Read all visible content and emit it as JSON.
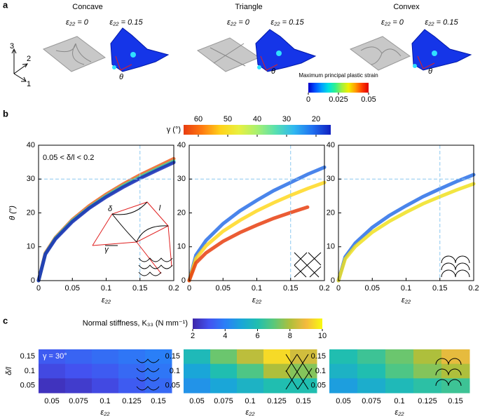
{
  "panel_labels": [
    "a",
    "b",
    "c"
  ],
  "panel_a": {
    "axes": [
      "3",
      "2",
      "1"
    ],
    "groups": [
      {
        "title": "Concave",
        "left_label": "ε₂₂ = 0",
        "right_label": "ε₂₂ = 0.15",
        "angle": "θ"
      },
      {
        "title": "Triangle",
        "left_label": "ε₂₂ = 0",
        "right_label": "ε₂₂ = 0.15",
        "angle": "θ"
      },
      {
        "title": "Convex",
        "left_label": "ε₂₂ = 0",
        "right_label": "ε₂₂ = 0.15",
        "angle": "θ"
      }
    ],
    "colorbar": {
      "label": "Maximum principal plastic strain",
      "lim": [
        0,
        0.05
      ],
      "ticks": [
        0,
        0.025,
        0.05
      ],
      "colors": [
        "#0000c8",
        "#0050ff",
        "#00a0ff",
        "#00e0e0",
        "#30f090",
        "#a0f040",
        "#f0f000",
        "#ffa000",
        "#ff4000",
        "#e00000"
      ]
    }
  },
  "panel_b_colorbar": {
    "label": "γ (°)",
    "lim": [
      65,
      15
    ],
    "ticks": [
      60,
      50,
      40,
      30,
      20
    ],
    "colors": [
      "#e83c10",
      "#ff7a10",
      "#ffd21a",
      "#e8f040",
      "#a8f070",
      "#58e0b0",
      "#30b8f0",
      "#2070f0",
      "#1020c0"
    ]
  },
  "panel_c_colorbar": {
    "label": "Normal stiffness, K₃₃ (N mm⁻¹)",
    "lim": [
      2,
      10
    ],
    "ticks": [
      2,
      4,
      6,
      8,
      10
    ],
    "colors": [
      "#3e26a8",
      "#4352f0",
      "#2a7ff7",
      "#1aa6d8",
      "#20beb0",
      "#5ac87a",
      "#aebf3c",
      "#f4ba3e",
      "#f8fa10"
    ]
  },
  "chart_data": [
    {
      "type": "line",
      "xlim": [
        0,
        0.2
      ],
      "ylim": [
        0,
        40
      ],
      "xticks": [
        0,
        0.05,
        0.1,
        0.15,
        0.2
      ],
      "yticks": [
        0,
        10,
        20,
        30,
        40
      ],
      "xlabel": "ε₂₂",
      "ylabel": "θ (°)",
      "annotation": "0.05 < δ/l < 0.2",
      "inset_labels": [
        "δ",
        "l",
        "γ"
      ],
      "guide_lines": {
        "x": 0.15,
        "y": 30
      },
      "x": [
        0,
        0.01,
        0.025,
        0.05,
        0.075,
        0.1,
        0.125,
        0.15,
        0.175,
        0.2
      ],
      "series": [
        {
          "color": "#f06020",
          "values": [
            0,
            8.1,
            12.7,
            18.0,
            22.1,
            25.5,
            28.5,
            31.2,
            33.6,
            36.0
          ]
        },
        {
          "color": "#40d8a0",
          "values": [
            0,
            7.9,
            12.5,
            17.7,
            21.6,
            25.0,
            28.0,
            30.6,
            33.0,
            35.3
          ]
        },
        {
          "color": "#1a2ab8",
          "values": [
            0,
            7.8,
            12.3,
            17.4,
            21.4,
            24.7,
            27.6,
            30.2,
            32.6,
            34.9
          ]
        }
      ]
    },
    {
      "type": "line",
      "xlim": [
        0,
        0.2
      ],
      "ylim": [
        0,
        40
      ],
      "xticks": [
        0,
        0.05,
        0.1,
        0.15,
        0.2
      ],
      "yticks": [
        0,
        10,
        20,
        30,
        40
      ],
      "xlabel": "ε₂₂",
      "guide_lines": {
        "x": 0.15,
        "y": 30
      },
      "x": [
        0,
        0.01,
        0.025,
        0.05,
        0.075,
        0.1,
        0.125,
        0.15,
        0.175,
        0.2
      ],
      "series": [
        {
          "color": "#2a70e8",
          "values": [
            0,
            7.5,
            11.9,
            16.8,
            20.6,
            23.7,
            26.6,
            29.0,
            31.4,
            33.5
          ]
        },
        {
          "color": "#ffd820",
          "values": [
            0,
            6.5,
            10.3,
            14.6,
            17.8,
            20.6,
            23.0,
            25.2,
            27.2,
            29.0
          ]
        },
        {
          "color": "#e84010",
          "values": [
            0,
            5.2,
            8.2,
            11.6,
            14.2,
            16.4,
            18.4,
            20.1,
            21.7,
            null
          ]
        }
      ]
    },
    {
      "type": "line",
      "xlim": [
        0,
        0.2
      ],
      "ylim": [
        0,
        40
      ],
      "xticks": [
        0,
        0.05,
        0.1,
        0.15,
        0.2
      ],
      "yticks": [
        0,
        10,
        20,
        30,
        40
      ],
      "xlabel": "ε₂₂",
      "guide_lines": {
        "x": 0.15,
        "y": 30
      },
      "x": [
        0,
        0.01,
        0.025,
        0.05,
        0.075,
        0.1,
        0.125,
        0.15,
        0.175,
        0.2
      ],
      "series": [
        {
          "color": "#2a70e8",
          "values": [
            0,
            7.0,
            11.1,
            15.7,
            19.2,
            22.1,
            24.8,
            27.1,
            29.3,
            31.3
          ]
        },
        {
          "color": "#f0e020",
          "values": [
            0,
            6.4,
            10.1,
            14.3,
            17.5,
            20.2,
            22.7,
            24.8,
            26.8,
            28.6
          ]
        }
      ]
    },
    {
      "type": "heatmap",
      "categories": [
        "0.05",
        "0.075",
        "0.1",
        "0.125",
        "0.15"
      ],
      "y_categories": [
        "0.15",
        "0.1",
        "0.05"
      ],
      "xlabel": "ε₂₂",
      "ylabel": "δ/l",
      "annotation": "γ = 30°",
      "values": [
        [
          3.2,
          3.4,
          3.6,
          3.8,
          4.0
        ],
        [
          2.8,
          3.0,
          3.2,
          3.5,
          3.8
        ],
        [
          2.3,
          2.5,
          2.8,
          3.2,
          3.5
        ]
      ]
    },
    {
      "type": "heatmap",
      "categories": [
        "0.05",
        "0.075",
        "0.1",
        "0.125",
        "0.15"
      ],
      "y_categories": [
        "0.15",
        "0.1",
        "0.05"
      ],
      "xlabel": "ε₂₂",
      "values": [
        [
          5.8,
          7.2,
          8.2,
          9.5,
          8.5
        ],
        [
          5.0,
          6.0,
          6.8,
          8.0,
          7.5
        ],
        [
          4.5,
          5.0,
          5.5,
          6.0,
          6.0
        ]
      ]
    },
    {
      "type": "heatmap",
      "categories": [
        "0.05",
        "0.075",
        "0.1",
        "0.125",
        "0.15"
      ],
      "y_categories": [
        "0.15",
        "0.1",
        "0.05"
      ],
      "xlabel": "ε₂₂",
      "values": [
        [
          6.0,
          6.5,
          7.2,
          8.0,
          8.8
        ],
        [
          5.5,
          6.0,
          6.8,
          7.5,
          8.0
        ],
        [
          4.8,
          5.3,
          5.8,
          6.2,
          6.5
        ]
      ]
    }
  ]
}
